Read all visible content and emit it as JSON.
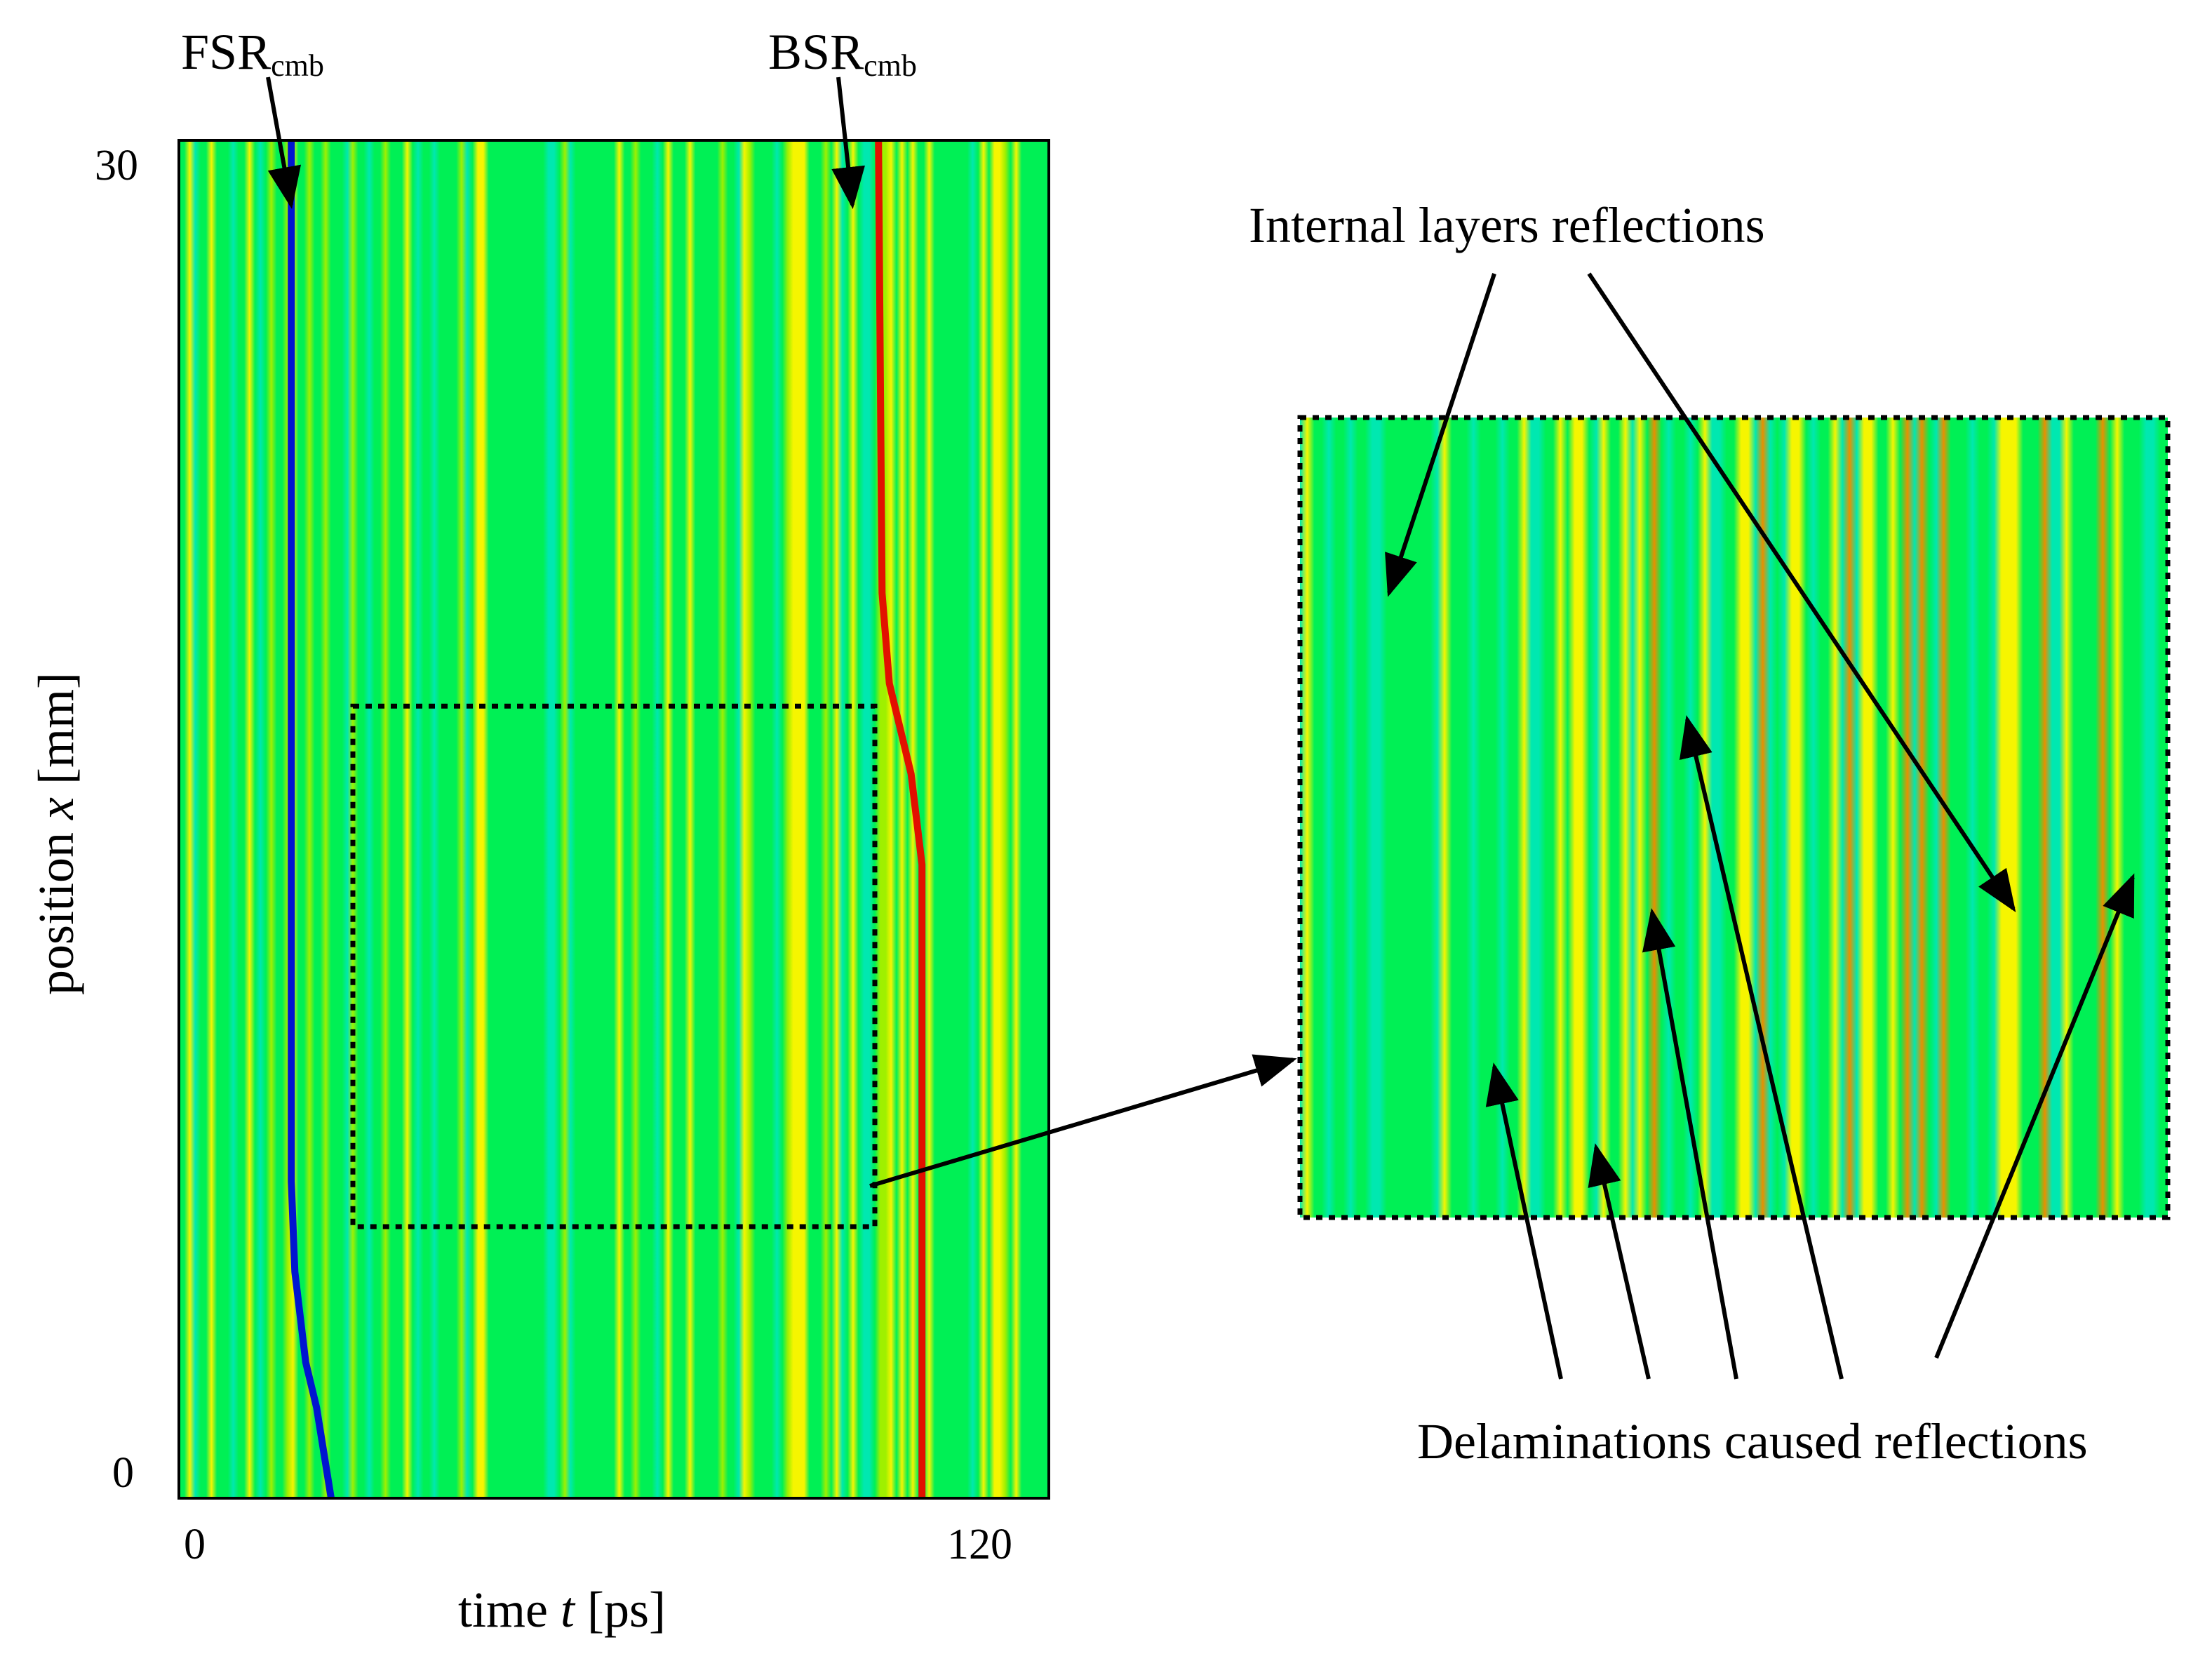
{
  "chart_data": {
    "type": "heatmap",
    "colormap": "jet",
    "colors": {
      "background": "#00f055",
      "red": "#e21000",
      "blue": "#0015d0",
      "yellow": "#f6f500",
      "cyan": "#00e8b0"
    },
    "title": "",
    "xlabel": {
      "prefix": "time ",
      "var": "t",
      "suffix": " [ps]"
    },
    "ylabel": {
      "prefix": "position ",
      "var": "x",
      "suffix": " [mm]"
    },
    "xlim": [
      0,
      120
    ],
    "ylim": [
      0,
      30
    ],
    "x_ticks": [
      "0",
      "120"
    ],
    "y_ticks": [
      "30",
      "0"
    ],
    "annotations": {
      "fsr": {
        "main": "FSR",
        "sub": "cmb"
      },
      "bsr": {
        "main": "BSR",
        "sub": "cmb"
      },
      "internal": "Internal layers reflections",
      "delaminations": "Delaminations caused reflections"
    },
    "features": [
      {
        "name": "FSR",
        "color": "blue",
        "t": [
          15.5,
          15.5,
          16.0,
          17.5,
          19.0,
          21.0
        ],
        "x": [
          30,
          7,
          5,
          3,
          2,
          0
        ]
      },
      {
        "name": "BSR",
        "color": "red",
        "t": [
          96.5,
          97.0,
          98.0,
          101.0,
          102.5,
          102.5
        ],
        "x": [
          30,
          20,
          18,
          16,
          14,
          0
        ]
      }
    ],
    "zoom_box": {
      "t": [
        24,
        96
      ],
      "x": [
        6,
        17.5
      ]
    },
    "inset": {
      "t": [
        24,
        96
      ],
      "x": [
        6,
        17.5
      ]
    }
  }
}
